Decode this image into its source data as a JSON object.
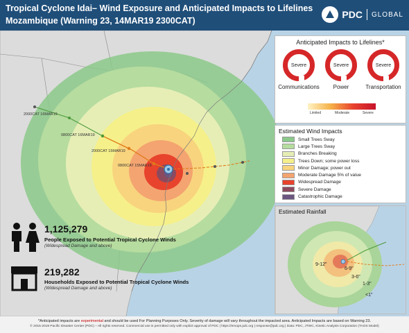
{
  "header": {
    "title_line1": "Tropical Cyclone Idai– Wind Exposure and Anticipated Impacts to Lifelines",
    "title_line2": "Mozambique (Warning 23, 14MAR19 2300CAT)",
    "logo_text": "PDC",
    "logo_sub": "GLOBAL"
  },
  "colors": {
    "header_bg": "#1f4e79",
    "severe_red": "#d62728",
    "water": "#b9d3e6",
    "land": "#dcdcdc"
  },
  "impacts": {
    "title": "Anticipated Impacts to Lifelines*",
    "items": [
      {
        "label": "Communications",
        "value": "Severe"
      },
      {
        "label": "Power",
        "value": "Severe"
      },
      {
        "label": "Transportation",
        "value": "Severe"
      }
    ],
    "scale_labels": [
      "Limited",
      "Moderate",
      "Severe"
    ]
  },
  "wind_legend": {
    "title": "Estimated Wind Impacts",
    "items": [
      {
        "label": "Small Trees Sway",
        "color": "#8cc98a"
      },
      {
        "label": "Large Trees Sway",
        "color": "#b6dc9f"
      },
      {
        "label": "Branches Breaking",
        "color": "#e6eeb6"
      },
      {
        "label": "Trees Down; some power loss",
        "color": "#f6f08a"
      },
      {
        "label": "Minor Damage; power out",
        "color": "#f8d47e"
      },
      {
        "label": "Moderate Damage 5% of value",
        "color": "#f4a470"
      },
      {
        "label": "Widespread Damage",
        "color": "#e8432d"
      },
      {
        "label": "Severe Damage",
        "color": "#8c4a5e"
      },
      {
        "label": "Catastrophic Damage",
        "color": "#6a5680"
      }
    ]
  },
  "rainfall": {
    "title": "Estimated Rainfall",
    "labels": [
      "9-12\"",
      "6-9\"",
      "3-6\"",
      "1-3\"",
      "<1\""
    ]
  },
  "track_labels": [
    "2000CAT 16MAR19",
    "0800CAT 16MAR19",
    "2000CAT 15MAR19",
    "0800CAT 15MAR19"
  ],
  "stats": {
    "people_value": "1,125,279",
    "people_label": "People Exposed to Potential Tropical Cyclone Winds",
    "people_sub": "(Widespread Damage and above)",
    "households_value": "219,282",
    "households_label": "Households Exposed to Potential Tropical Cyclone Winds",
    "households_sub": "(Widespread Damage and above)"
  },
  "footer": {
    "note_prefix": "*Anticipated impacts are ",
    "note_red": "experimental",
    "note_suffix": " and should be used For Planning Purposes Only. Severity of damage will vary throughout the impacted area. Anticipated Impacts are based on Warning 23.",
    "copyright": "© 2015-2019 Pacific Disaster Center (PDC) – All rights reserved. Commercial use is permitted only with explicit approval of PDC | https://emops.pdc.org | response@pdc.org | Data: PDC, JTWC, Kinetic Analysis Corporation (TAOS Model)"
  }
}
